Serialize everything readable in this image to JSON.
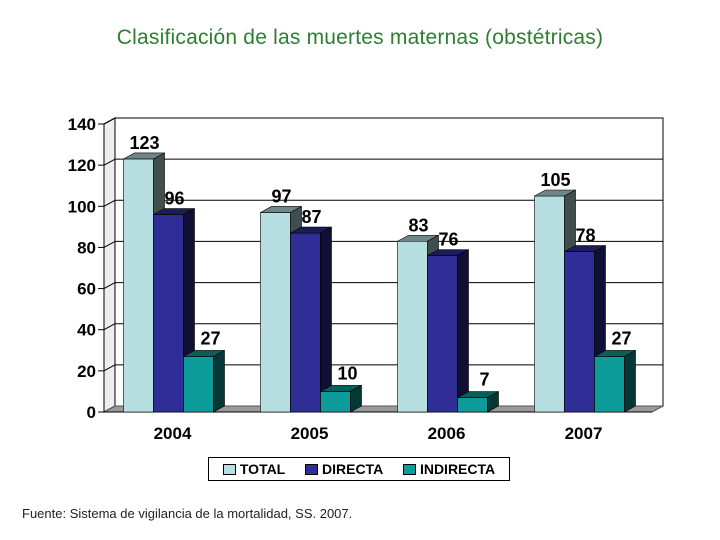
{
  "title": "Clasificación de las muertes maternas (obstétricas)",
  "source": "Fuente: Sistema de vigilancia de la mortalidad, SS. 2007.",
  "colors": {
    "total": "#b7dfe2",
    "directa": "#2e2e96",
    "indirecta": "#0e9c9a",
    "grid": "#000000",
    "title": "#2e7d32"
  },
  "chart_data": {
    "type": "bar",
    "title": "Clasificación de las muertes maternas (obstétricas)",
    "categories": [
      "2004",
      "2005",
      "2006",
      "2007"
    ],
    "series": [
      {
        "name": "TOTAL",
        "values": [
          123,
          97,
          83,
          105
        ]
      },
      {
        "name": "DIRECTA",
        "values": [
          96,
          87,
          76,
          78
        ]
      },
      {
        "name": "INDIRECTA",
        "values": [
          27,
          10,
          7,
          27
        ]
      }
    ],
    "y_ticks": [
      "0",
      "20",
      "40",
      "60",
      "80",
      "100",
      "120",
      "140"
    ],
    "ylim": [
      0,
      140
    ],
    "xlabel": "",
    "ylabel": "",
    "legend_position": "bottom",
    "grid": true,
    "style": "3d"
  }
}
